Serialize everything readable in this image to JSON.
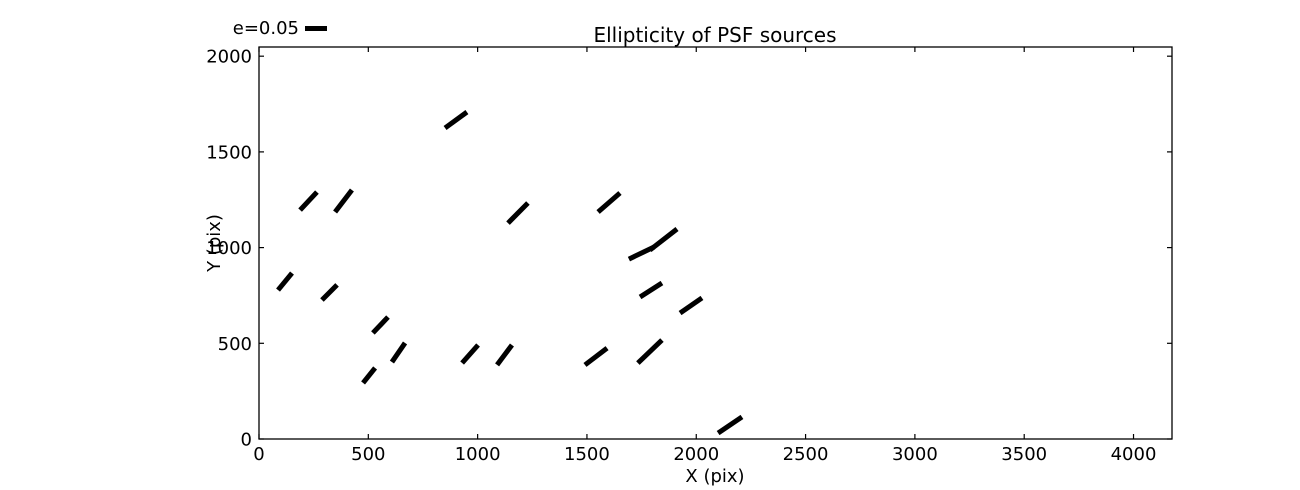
{
  "chart_data": {
    "type": "quiver",
    "title": "Ellipticity of PSF sources",
    "xlabel": "X (pix)",
    "ylabel": "Y (pix)",
    "xlim": [
      0,
      4176
    ],
    "ylim": [
      0,
      2048
    ],
    "xticks": [
      0,
      500,
      1000,
      1500,
      2000,
      2500,
      3000,
      3500,
      4000
    ],
    "yticks": [
      0,
      500,
      1000,
      1500,
      2000
    ],
    "xtick_labels": [
      "0",
      "500",
      "1000",
      "1500",
      "2000",
      "2500",
      "3000",
      "3500",
      "4000"
    ],
    "ytick_labels": [
      "0",
      "500",
      "1000",
      "1500",
      "2000"
    ],
    "grid": false,
    "legend_position": "outside-top-left",
    "key": {
      "label": "e=0.05",
      "ellipticity": 0.05
    },
    "segment_color": "#000000",
    "background_color": "#ffffff",
    "segments": [
      {
        "x1": 851,
        "y1": 1625,
        "x2": 951,
        "y2": 1708
      },
      {
        "x1": 188,
        "y1": 1196,
        "x2": 265,
        "y2": 1290
      },
      {
        "x1": 348,
        "y1": 1186,
        "x2": 425,
        "y2": 1301
      },
      {
        "x1": 87,
        "y1": 778,
        "x2": 151,
        "y2": 867
      },
      {
        "x1": 288,
        "y1": 726,
        "x2": 357,
        "y2": 805
      },
      {
        "x1": 521,
        "y1": 554,
        "x2": 590,
        "y2": 637
      },
      {
        "x1": 608,
        "y1": 402,
        "x2": 668,
        "y2": 502
      },
      {
        "x1": 476,
        "y1": 293,
        "x2": 531,
        "y2": 371
      },
      {
        "x1": 929,
        "y1": 397,
        "x2": 1002,
        "y2": 491
      },
      {
        "x1": 1089,
        "y1": 387,
        "x2": 1157,
        "y2": 491
      },
      {
        "x1": 1139,
        "y1": 1128,
        "x2": 1230,
        "y2": 1233
      },
      {
        "x1": 1551,
        "y1": 1186,
        "x2": 1651,
        "y2": 1285
      },
      {
        "x1": 1692,
        "y1": 940,
        "x2": 1807,
        "y2": 1003
      },
      {
        "x1": 1788,
        "y1": 987,
        "x2": 1912,
        "y2": 1097
      },
      {
        "x1": 1743,
        "y1": 742,
        "x2": 1843,
        "y2": 815
      },
      {
        "x1": 1926,
        "y1": 658,
        "x2": 2026,
        "y2": 737
      },
      {
        "x1": 1491,
        "y1": 387,
        "x2": 1592,
        "y2": 475
      },
      {
        "x1": 1733,
        "y1": 397,
        "x2": 1843,
        "y2": 517
      },
      {
        "x1": 2100,
        "y1": 31,
        "x2": 2209,
        "y2": 115
      }
    ]
  }
}
